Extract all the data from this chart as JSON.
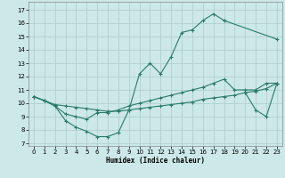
{
  "xlabel": "Humidex (Indice chaleur)",
  "bg_color": "#cce8e8",
  "grid_color": "#aacccc",
  "line_color": "#2a7a6a",
  "xlim": [
    -0.5,
    23.5
  ],
  "ylim": [
    6.8,
    17.6
  ],
  "xticks": [
    0,
    1,
    2,
    3,
    4,
    5,
    6,
    7,
    8,
    9,
    10,
    11,
    12,
    13,
    14,
    15,
    16,
    17,
    18,
    19,
    20,
    21,
    22,
    23
  ],
  "yticks": [
    7,
    8,
    9,
    10,
    11,
    12,
    13,
    14,
    15,
    16,
    17
  ],
  "s1x": [
    0,
    1,
    2,
    3,
    4,
    5,
    6,
    7,
    8,
    9,
    10,
    11,
    12,
    13,
    14,
    15,
    16,
    17,
    18
  ],
  "s1y": [
    10.5,
    10.2,
    9.8,
    8.7,
    8.2,
    7.9,
    7.5,
    7.5,
    7.8,
    9.5,
    12.2,
    13.0,
    12.2,
    13.5,
    15.3,
    15.5,
    16.2,
    16.7,
    16.2
  ],
  "s1bx": [
    18,
    23
  ],
  "s1by": [
    16.2,
    14.8
  ],
  "s2x": [
    0,
    1,
    2,
    3,
    4,
    5,
    6,
    7,
    8,
    9,
    10,
    11,
    12,
    13,
    14,
    15,
    16,
    17,
    18,
    19,
    20,
    21,
    22,
    23
  ],
  "s2y": [
    10.5,
    10.2,
    9.8,
    9.2,
    9.0,
    8.8,
    9.3,
    9.3,
    9.5,
    9.8,
    10.0,
    10.2,
    10.4,
    10.6,
    10.8,
    11.0,
    11.2,
    11.5,
    11.8,
    11.0,
    11.0,
    11.0,
    11.5,
    11.5
  ],
  "s3x": [
    0,
    1,
    2,
    3,
    4,
    5,
    6,
    7,
    8,
    9,
    10,
    11,
    12,
    13,
    14,
    15,
    16,
    17,
    18,
    19,
    20,
    21,
    22,
    23
  ],
  "s3y": [
    10.5,
    10.2,
    9.9,
    9.8,
    9.7,
    9.6,
    9.5,
    9.4,
    9.4,
    9.5,
    9.6,
    9.7,
    9.8,
    9.9,
    10.0,
    10.1,
    10.3,
    10.4,
    10.5,
    10.6,
    10.8,
    10.9,
    11.1,
    11.5
  ],
  "s4x": [
    20,
    21,
    22,
    23
  ],
  "s4y": [
    10.8,
    9.5,
    9.0,
    11.5
  ]
}
